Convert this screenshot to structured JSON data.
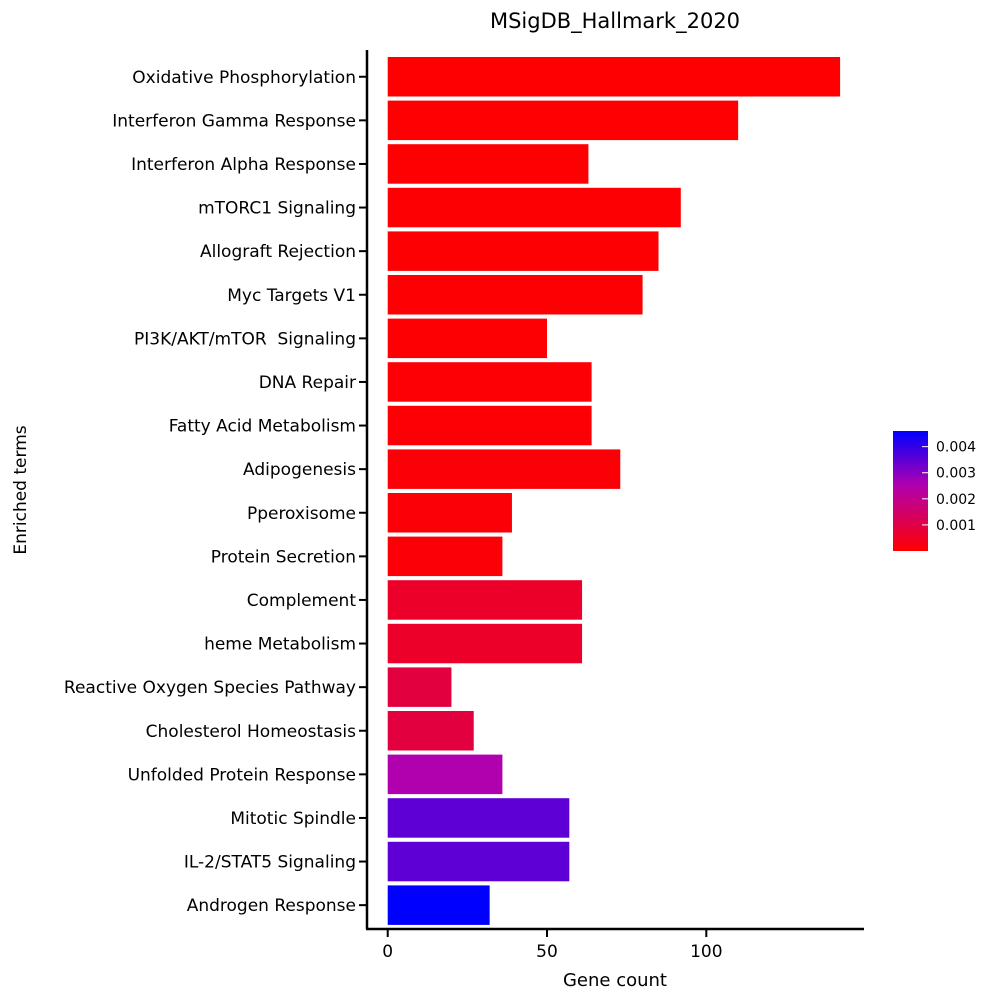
{
  "chart_data": {
    "type": "bar",
    "orientation": "horizontal",
    "title": "MSigDB_Hallmark_2020",
    "xlabel": "Gene count",
    "ylabel": "Enriched terms",
    "xlim": [
      -6.5,
      149.5
    ],
    "xticks": [
      0,
      50,
      100
    ],
    "categories": [
      "Oxidative Phosphorylation",
      "Interferon Gamma Response",
      "Interferon Alpha Response",
      "mTORC1 Signaling",
      "Allograft Rejection",
      "Myc Targets V1",
      "PI3K/AKT/mTOR  Signaling",
      "DNA Repair",
      "Fatty Acid Metabolism",
      "Adipogenesis",
      "Pperoxisome",
      "Protein Secretion",
      "Complement",
      "heme Metabolism",
      "Reactive Oxygen Species Pathway",
      "Cholesterol Homeostasis",
      "Unfolded Protein Response",
      "Mitotic Spindle",
      "IL-2/STAT5 Signaling",
      "Androgen Response"
    ],
    "values": [
      142,
      110,
      63,
      92,
      85,
      80,
      50,
      64,
      64,
      73,
      39,
      36,
      61,
      61,
      20,
      27,
      36,
      57,
      57,
      32
    ],
    "color_values": [
      2e-05,
      2e-05,
      2e-05,
      5e-05,
      5e-05,
      5e-05,
      5e-05,
      8e-05,
      8e-05,
      0.0001,
      0.0001,
      0.0001,
      0.0006,
      0.0006,
      0.0009,
      0.0009,
      0.0025,
      0.0035,
      0.0035,
      0.0046
    ],
    "colorbar": {
      "ticks": [
        "0.004",
        "0.003",
        "0.002",
        "0.001"
      ],
      "tick_values": [
        0.004,
        0.003,
        0.002,
        0.001
      ],
      "range": [
        0,
        0.0046
      ],
      "low_color": "#ff0000",
      "high_color": "#0000ff",
      "mid_color": "#b000b0"
    },
    "legend_position": "right",
    "grid": false
  }
}
